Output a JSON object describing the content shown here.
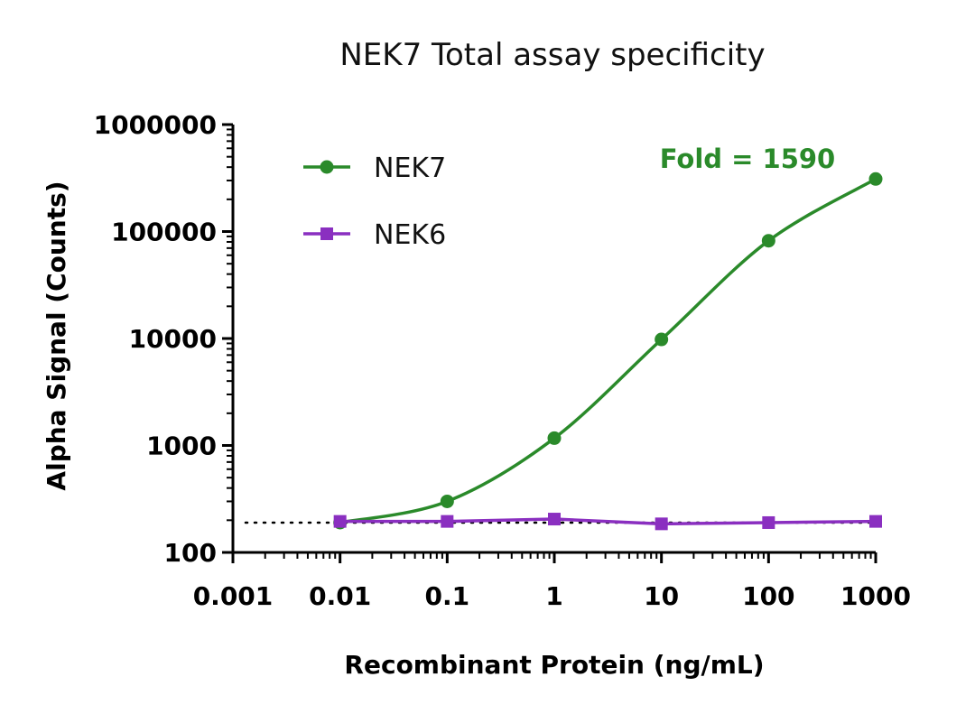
{
  "chart_data": {
    "type": "line",
    "title": "NEK7 Total assay specificity",
    "xlabel": "Recombinant Protein (ng/mL)",
    "ylabel": "Alpha Signal (Counts)",
    "x_scale": "log",
    "y_scale": "log",
    "xlim": [
      0.001,
      1000
    ],
    "ylim": [
      100,
      1000000
    ],
    "x_ticks": [
      "0.001",
      "0.01",
      "0.1",
      "1",
      "10",
      "100",
      "1000"
    ],
    "y_ticks": [
      "100",
      "1000",
      "10000",
      "100000",
      "1000000"
    ],
    "grid": false,
    "legend_position": "top-left",
    "baseline": {
      "y": 190,
      "style": "dotted"
    },
    "annotation": {
      "text": "Fold = 1590",
      "color": "#2a8a2a"
    },
    "series": [
      {
        "name": "NEK7",
        "color": "#2a8a2a",
        "marker": "circle",
        "x": [
          0.01,
          0.1,
          1,
          10,
          100,
          1000
        ],
        "y": [
          190,
          300,
          1170,
          9800,
          82000,
          310000
        ]
      },
      {
        "name": "NEK6",
        "color": "#8a2fc0",
        "marker": "square",
        "x": [
          0.01,
          0.1,
          1,
          10,
          100,
          1000
        ],
        "y": [
          195,
          195,
          205,
          185,
          190,
          195
        ]
      }
    ]
  }
}
